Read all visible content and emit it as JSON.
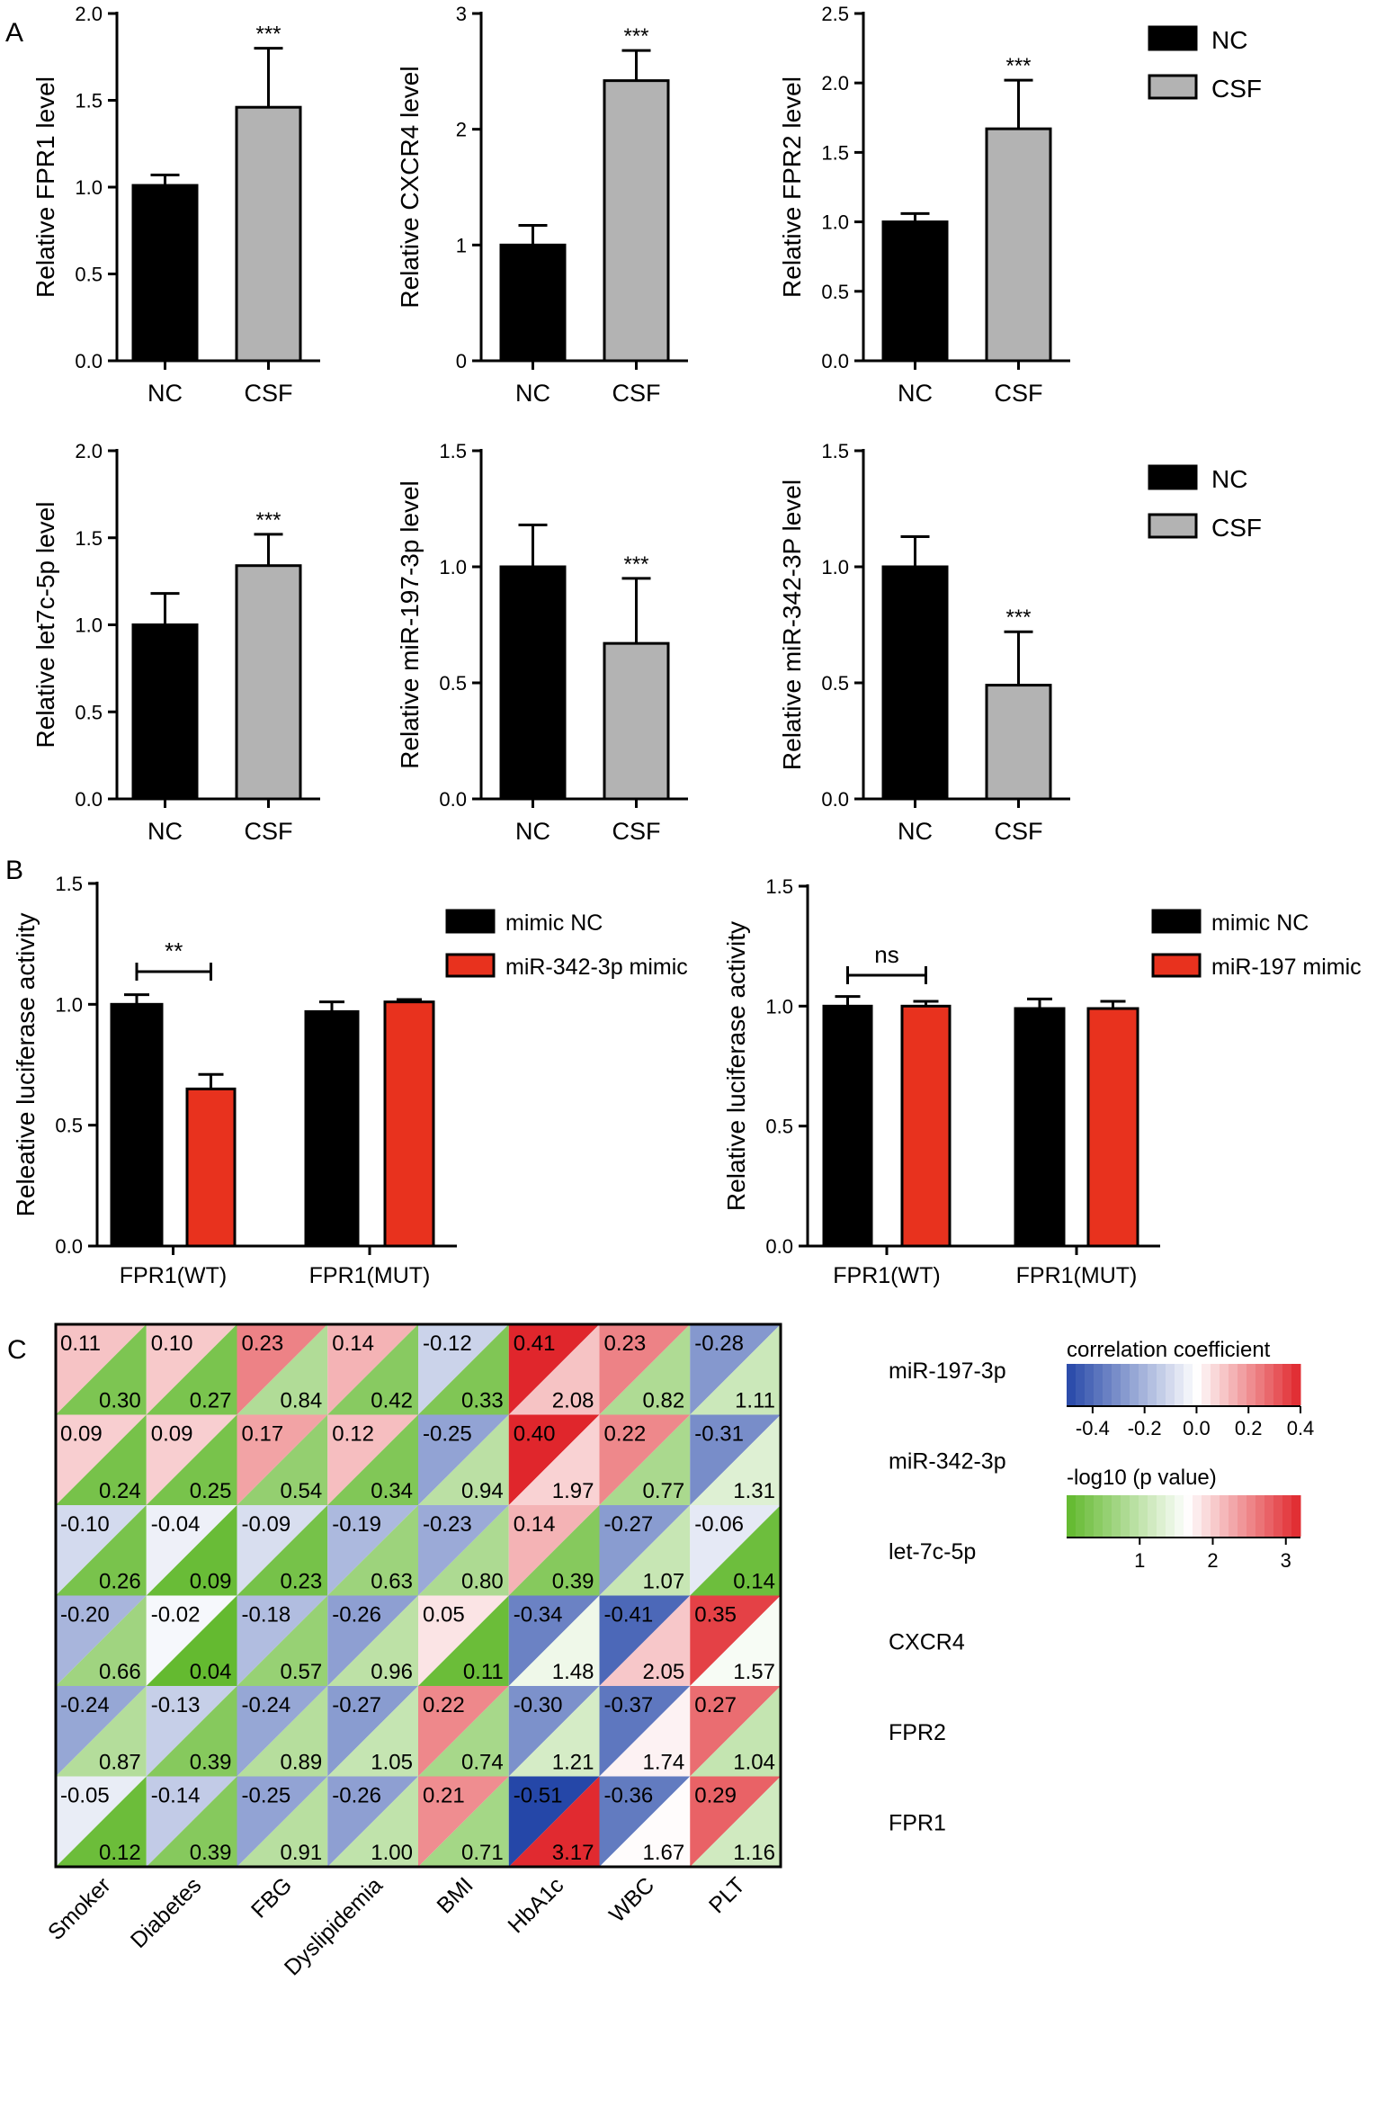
{
  "panels": {
    "A": "A",
    "B": "B",
    "C": "C"
  },
  "colors": {
    "nc": "#000000",
    "csf": "#b3b3b3",
    "mimic": "#e8321e",
    "neg": "#2547a8",
    "pos": "#e0262c",
    "low": "#60b82b"
  },
  "chart_data": [
    {
      "type": "bar",
      "panel": "A",
      "ylabel": "Relative FPR1 level",
      "categories": [
        "NC",
        "CSF"
      ],
      "values": [
        1.01,
        1.46
      ],
      "errors": [
        0.06,
        0.34
      ],
      "ylim": [
        0,
        2.0
      ],
      "yticks": [
        "0.0",
        "0.5",
        "1.0",
        "1.5",
        "2.0"
      ],
      "annotations": [
        "",
        "***"
      ]
    },
    {
      "type": "bar",
      "panel": "A",
      "ylabel": "Relative CXCR4 level",
      "categories": [
        "NC",
        "CSF"
      ],
      "values": [
        1.0,
        2.42
      ],
      "errors": [
        0.17,
        0.26
      ],
      "ylim": [
        0,
        3
      ],
      "yticks": [
        "0",
        "1",
        "2",
        "3"
      ],
      "annotations": [
        "",
        "***"
      ]
    },
    {
      "type": "bar",
      "panel": "A",
      "ylabel": "Relative FPR2 level",
      "categories": [
        "NC",
        "CSF"
      ],
      "values": [
        1.0,
        1.67
      ],
      "errors": [
        0.06,
        0.35
      ],
      "ylim": [
        0,
        2.5
      ],
      "yticks": [
        "0.0",
        "0.5",
        "1.0",
        "1.5",
        "2.0",
        "2.5"
      ],
      "annotations": [
        "",
        "***"
      ]
    },
    {
      "type": "bar",
      "panel": "A",
      "ylabel": "Relative let7c-5p level",
      "categories": [
        "NC",
        "CSF"
      ],
      "values": [
        1.0,
        1.34
      ],
      "errors": [
        0.18,
        0.18
      ],
      "ylim": [
        0,
        2.0
      ],
      "yticks": [
        "0.0",
        "0.5",
        "1.0",
        "1.5",
        "2.0"
      ],
      "annotations": [
        "",
        "***"
      ]
    },
    {
      "type": "bar",
      "panel": "A",
      "ylabel": "Relative miR-197-3p level",
      "categories": [
        "NC",
        "CSF"
      ],
      "values": [
        1.0,
        0.67
      ],
      "errors": [
        0.18,
        0.28
      ],
      "ylim": [
        0,
        1.5
      ],
      "yticks": [
        "0.0",
        "0.5",
        "1.0",
        "1.5"
      ],
      "annotations": [
        "",
        "***"
      ]
    },
    {
      "type": "bar",
      "panel": "A",
      "ylabel": "Relative miR-342-3P level",
      "categories": [
        "NC",
        "CSF"
      ],
      "values": [
        1.0,
        0.49
      ],
      "errors": [
        0.13,
        0.23
      ],
      "ylim": [
        0,
        1.5
      ],
      "yticks": [
        "0.0",
        "0.5",
        "1.0",
        "1.5"
      ],
      "annotations": [
        "",
        "***"
      ]
    },
    {
      "type": "bar",
      "panel": "B",
      "ylabel": "Releative luciferase activity",
      "categories": [
        "FPR1(WT)",
        "FPR1(MUT)"
      ],
      "series": [
        {
          "name": "mimic NC",
          "values": [
            1.0,
            0.97
          ],
          "errors": [
            0.04,
            0.04
          ]
        },
        {
          "name": "miR-342-3p mimic",
          "values": [
            0.65,
            1.01
          ],
          "errors": [
            0.06,
            0.01
          ]
        }
      ],
      "ylim": [
        0,
        1.5
      ],
      "yticks": [
        "0.0",
        "0.5",
        "1.0",
        "1.5"
      ],
      "bracket": "**"
    },
    {
      "type": "bar",
      "panel": "B",
      "ylabel": "Relative luciferase activity",
      "categories": [
        "FPR1(WT)",
        "FPR1(MUT)"
      ],
      "series": [
        {
          "name": "mimic NC",
          "values": [
            1.0,
            0.99
          ],
          "errors": [
            0.04,
            0.04
          ]
        },
        {
          "name": "miR-197 mimic",
          "values": [
            1.0,
            0.99
          ],
          "errors": [
            0.02,
            0.03
          ]
        }
      ],
      "ylim": [
        0,
        1.5
      ],
      "yticks": [
        "0.0",
        "0.5",
        "1.0",
        "1.5"
      ],
      "bracket": "ns"
    },
    {
      "type": "heatmap",
      "panel": "C",
      "columns": [
        "Smoker",
        "Diabetes",
        "FBG",
        "Dyslipidemia",
        "BMI",
        "HbA1c",
        "WBC",
        "PLT"
      ],
      "rows": [
        "miR-197-3p",
        "miR-342-3p",
        "let-7c-5p",
        "CXCR4",
        "FPR2",
        "FPR1"
      ],
      "r_text": [
        [
          "0.11",
          "0.10",
          "0.23",
          "0.14",
          "-0.12",
          "0.41",
          "0.23",
          "-0.28"
        ],
        [
          "0.09",
          "0.09",
          "0.17",
          "0.12",
          "-0.25",
          "0.40",
          "0.22",
          "-0.31"
        ],
        [
          "-0.10",
          "-0.04",
          "-0.09",
          "-0.19",
          "-0.23",
          "0.14",
          "-0.27",
          "-0.06"
        ],
        [
          "-0.20",
          "-0.02",
          "-0.18",
          "-0.26",
          "0.05",
          "-0.34",
          "-0.41",
          "0.35"
        ],
        [
          "-0.24",
          "-0.13",
          "-0.24",
          "-0.27",
          "0.22",
          "-0.30",
          "-0.37",
          "0.27"
        ],
        [
          "-0.05",
          "-0.14",
          "-0.25",
          "-0.26",
          "0.21",
          "-0.51",
          "-0.36",
          "0.29"
        ]
      ],
      "p_text": [
        [
          "0.30",
          "0.27",
          "0.84",
          "0.42",
          "0.33",
          "2.08",
          "0.82",
          "1.11"
        ],
        [
          "0.24",
          "0.25",
          "0.54",
          "0.34",
          "0.94",
          "1.97",
          "0.77",
          "1.31"
        ],
        [
          "0.26",
          "0.09",
          "0.23",
          "0.63",
          "0.80",
          "0.39",
          "1.07",
          "0.14"
        ],
        [
          "0.66",
          "0.04",
          "0.57",
          "0.96",
          "0.11",
          "1.48",
          "2.05",
          "1.57"
        ],
        [
          "0.87",
          "0.39",
          "0.89",
          "1.05",
          "0.74",
          "1.21",
          "1.74",
          "1.04"
        ],
        [
          "0.12",
          "0.39",
          "0.91",
          "1.00",
          "0.71",
          "3.17",
          "1.67",
          "1.16"
        ]
      ],
      "legend": {
        "corr_title": "correlation coefficient",
        "corr_ticks": [
          "-0.4",
          "-0.2",
          "0.0",
          "0.2",
          "0.4"
        ],
        "corr_range": [
          -0.5,
          0.4
        ],
        "p_title": "-log10 (p value)",
        "p_ticks": [
          "1",
          "2",
          "3"
        ],
        "p_range": [
          0,
          3.2
        ]
      }
    }
  ]
}
